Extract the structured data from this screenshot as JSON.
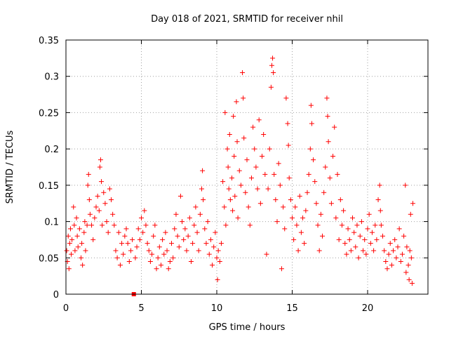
{
  "chart_data": {
    "type": "scatter",
    "title": "Day 018 of 2021, SRMTID for receiver nhil",
    "xlabel": "GPS time / hours",
    "ylabel": "SRMTID / TECUs",
    "xlim": [
      0,
      24
    ],
    "ylim": [
      0,
      0.35
    ],
    "xticks": [
      0,
      5,
      10,
      15,
      20
    ],
    "xtick_labels": [
      "0",
      "5",
      "10",
      "15",
      "20"
    ],
    "yticks": [
      0,
      0.05,
      0.1,
      0.15,
      0.2,
      0.25,
      0.3,
      0.35
    ],
    "ytick_labels": [
      "0",
      "0.05",
      "0.1",
      "0.15",
      "0.2",
      "0.25",
      "0.3",
      "0.35"
    ],
    "grid": true,
    "marker": "+",
    "marker_color": "#ff0000",
    "outlier_square": {
      "x": 4.5,
      "y": 0.0,
      "marker": "square"
    },
    "series": [
      {
        "name": "SRMTID",
        "points": [
          [
            0.05,
            0.06
          ],
          [
            0.1,
            0.045
          ],
          [
            0.15,
            0.08
          ],
          [
            0.2,
            0.035
          ],
          [
            0.25,
            0.07
          ],
          [
            0.3,
            0.09
          ],
          [
            0.35,
            0.055
          ],
          [
            0.4,
            0.075
          ],
          [
            0.5,
            0.12
          ],
          [
            0.55,
            0.095
          ],
          [
            0.6,
            0.06
          ],
          [
            0.7,
            0.105
          ],
          [
            0.75,
            0.08
          ],
          [
            0.8,
            0.065
          ],
          [
            0.9,
            0.09
          ],
          [
            1.0,
            0.05
          ],
          [
            1.05,
            0.07
          ],
          [
            1.1,
            0.04
          ],
          [
            1.2,
            0.085
          ],
          [
            1.25,
            0.1
          ],
          [
            1.3,
            0.06
          ],
          [
            1.4,
            0.095
          ],
          [
            1.45,
            0.15
          ],
          [
            1.5,
            0.165
          ],
          [
            1.55,
            0.13
          ],
          [
            1.6,
            0.11
          ],
          [
            1.7,
            0.095
          ],
          [
            1.8,
            0.075
          ],
          [
            1.9,
            0.105
          ],
          [
            2.0,
            0.12
          ],
          [
            2.1,
            0.135
          ],
          [
            2.2,
            0.115
          ],
          [
            2.25,
            0.175
          ],
          [
            2.3,
            0.185
          ],
          [
            2.35,
            0.155
          ],
          [
            2.4,
            0.095
          ],
          [
            2.5,
            0.14
          ],
          [
            2.6,
            0.125
          ],
          [
            2.7,
            0.1
          ],
          [
            2.8,
            0.085
          ],
          [
            2.9,
            0.145
          ],
          [
            3.0,
            0.13
          ],
          [
            3.1,
            0.11
          ],
          [
            3.2,
            0.095
          ],
          [
            3.3,
            0.06
          ],
          [
            3.4,
            0.05
          ],
          [
            3.5,
            0.085
          ],
          [
            3.6,
            0.04
          ],
          [
            3.7,
            0.07
          ],
          [
            3.8,
            0.055
          ],
          [
            3.9,
            0.08
          ],
          [
            4.0,
            0.09
          ],
          [
            4.1,
            0.07
          ],
          [
            4.2,
            0.045
          ],
          [
            4.3,
            0.06
          ],
          [
            4.4,
            0.075
          ],
          [
            4.6,
            0.05
          ],
          [
            4.7,
            0.065
          ],
          [
            4.8,
            0.09
          ],
          [
            4.9,
            0.075
          ],
          [
            5.0,
            0.105
          ],
          [
            5.1,
            0.085
          ],
          [
            5.2,
            0.115
          ],
          [
            5.3,
            0.095
          ],
          [
            5.4,
            0.07
          ],
          [
            5.5,
            0.06
          ],
          [
            5.6,
            0.045
          ],
          [
            5.7,
            0.055
          ],
          [
            5.8,
            0.08
          ],
          [
            5.9,
            0.095
          ],
          [
            6.0,
            0.035
          ],
          [
            6.1,
            0.05
          ],
          [
            6.2,
            0.065
          ],
          [
            6.3,
            0.04
          ],
          [
            6.4,
            0.075
          ],
          [
            6.5,
            0.055
          ],
          [
            6.6,
            0.085
          ],
          [
            6.7,
            0.06
          ],
          [
            6.8,
            0.035
          ],
          [
            6.9,
            0.045
          ],
          [
            7.0,
            0.07
          ],
          [
            7.1,
            0.05
          ],
          [
            7.2,
            0.09
          ],
          [
            7.3,
            0.11
          ],
          [
            7.4,
            0.08
          ],
          [
            7.5,
            0.065
          ],
          [
            7.6,
            0.135
          ],
          [
            7.7,
            0.1
          ],
          [
            7.8,
            0.075
          ],
          [
            7.9,
            0.09
          ],
          [
            8.0,
            0.06
          ],
          [
            8.1,
            0.08
          ],
          [
            8.2,
            0.105
          ],
          [
            8.3,
            0.045
          ],
          [
            8.4,
            0.07
          ],
          [
            8.5,
            0.095
          ],
          [
            8.6,
            0.12
          ],
          [
            8.7,
            0.085
          ],
          [
            8.8,
            0.06
          ],
          [
            8.9,
            0.11
          ],
          [
            9.0,
            0.145
          ],
          [
            9.05,
            0.17
          ],
          [
            9.1,
            0.13
          ],
          [
            9.2,
            0.09
          ],
          [
            9.3,
            0.07
          ],
          [
            9.4,
            0.1
          ],
          [
            9.5,
            0.055
          ],
          [
            9.6,
            0.075
          ],
          [
            9.7,
            0.04
          ],
          [
            9.8,
            0.065
          ],
          [
            9.9,
            0.085
          ],
          [
            10.0,
            0.05
          ],
          [
            10.05,
            0.02
          ],
          [
            10.1,
            0.06
          ],
          [
            10.2,
            0.045
          ],
          [
            10.3,
            0.07
          ],
          [
            10.4,
            0.155
          ],
          [
            10.5,
            0.12
          ],
          [
            10.55,
            0.25
          ],
          [
            10.6,
            0.095
          ],
          [
            10.7,
            0.2
          ],
          [
            10.75,
            0.175
          ],
          [
            10.8,
            0.145
          ],
          [
            10.85,
            0.22
          ],
          [
            10.9,
            0.13
          ],
          [
            11.0,
            0.16
          ],
          [
            11.05,
            0.115
          ],
          [
            11.1,
            0.245
          ],
          [
            11.15,
            0.19
          ],
          [
            11.2,
            0.135
          ],
          [
            11.3,
            0.265
          ],
          [
            11.35,
            0.21
          ],
          [
            11.4,
            0.105
          ],
          [
            11.5,
            0.17
          ],
          [
            11.6,
            0.15
          ],
          [
            11.7,
            0.305
          ],
          [
            11.75,
            0.27
          ],
          [
            11.8,
            0.215
          ],
          [
            11.9,
            0.14
          ],
          [
            12.0,
            0.185
          ],
          [
            12.1,
            0.12
          ],
          [
            12.2,
            0.095
          ],
          [
            12.3,
            0.16
          ],
          [
            12.4,
            0.23
          ],
          [
            12.5,
            0.2
          ],
          [
            12.6,
            0.175
          ],
          [
            12.7,
            0.145
          ],
          [
            12.8,
            0.24
          ],
          [
            12.9,
            0.125
          ],
          [
            13.0,
            0.19
          ],
          [
            13.1,
            0.22
          ],
          [
            13.2,
            0.165
          ],
          [
            13.3,
            0.055
          ],
          [
            13.4,
            0.145
          ],
          [
            13.5,
            0.2
          ],
          [
            13.6,
            0.285
          ],
          [
            13.65,
            0.315
          ],
          [
            13.7,
            0.325
          ],
          [
            13.75,
            0.305
          ],
          [
            13.8,
            0.165
          ],
          [
            13.9,
            0.13
          ],
          [
            14.0,
            0.1
          ],
          [
            14.1,
            0.18
          ],
          [
            14.2,
            0.15
          ],
          [
            14.3,
            0.035
          ],
          [
            14.4,
            0.12
          ],
          [
            14.5,
            0.09
          ],
          [
            14.6,
            0.27
          ],
          [
            14.7,
            0.235
          ],
          [
            14.75,
            0.205
          ],
          [
            14.8,
            0.16
          ],
          [
            14.9,
            0.13
          ],
          [
            15.0,
            0.105
          ],
          [
            15.1,
            0.075
          ],
          [
            15.2,
            0.12
          ],
          [
            15.3,
            0.095
          ],
          [
            15.4,
            0.06
          ],
          [
            15.5,
            0.135
          ],
          [
            15.6,
            0.085
          ],
          [
            15.7,
            0.105
          ],
          [
            15.8,
            0.07
          ],
          [
            15.9,
            0.115
          ],
          [
            16.0,
            0.14
          ],
          [
            16.1,
            0.165
          ],
          [
            16.2,
            0.2
          ],
          [
            16.25,
            0.26
          ],
          [
            16.3,
            0.235
          ],
          [
            16.4,
            0.185
          ],
          [
            16.5,
            0.155
          ],
          [
            16.6,
            0.125
          ],
          [
            16.7,
            0.095
          ],
          [
            16.8,
            0.06
          ],
          [
            16.9,
            0.11
          ],
          [
            17.0,
            0.08
          ],
          [
            17.1,
            0.14
          ],
          [
            17.2,
            0.175
          ],
          [
            17.3,
            0.27
          ],
          [
            17.35,
            0.245
          ],
          [
            17.4,
            0.21
          ],
          [
            17.5,
            0.16
          ],
          [
            17.6,
            0.125
          ],
          [
            17.7,
            0.19
          ],
          [
            17.8,
            0.23
          ],
          [
            17.9,
            0.105
          ],
          [
            18.0,
            0.165
          ],
          [
            18.1,
            0.075
          ],
          [
            18.2,
            0.13
          ],
          [
            18.3,
            0.095
          ],
          [
            18.4,
            0.115
          ],
          [
            18.5,
            0.07
          ],
          [
            18.6,
            0.055
          ],
          [
            18.7,
            0.09
          ],
          [
            18.8,
            0.075
          ],
          [
            18.9,
            0.06
          ],
          [
            19.0,
            0.105
          ],
          [
            19.1,
            0.085
          ],
          [
            19.2,
            0.065
          ],
          [
            19.3,
            0.095
          ],
          [
            19.4,
            0.05
          ],
          [
            19.5,
            0.08
          ],
          [
            19.6,
            0.1
          ],
          [
            19.7,
            0.06
          ],
          [
            19.8,
            0.075
          ],
          [
            19.9,
            0.055
          ],
          [
            20.0,
            0.09
          ],
          [
            20.1,
            0.11
          ],
          [
            20.2,
            0.07
          ],
          [
            20.3,
            0.085
          ],
          [
            20.4,
            0.06
          ],
          [
            20.5,
            0.095
          ],
          [
            20.6,
            0.075
          ],
          [
            20.7,
            0.13
          ],
          [
            20.8,
            0.15
          ],
          [
            20.85,
            0.115
          ],
          [
            20.9,
            0.095
          ],
          [
            21.0,
            0.08
          ],
          [
            21.1,
            0.06
          ],
          [
            21.2,
            0.045
          ],
          [
            21.3,
            0.035
          ],
          [
            21.4,
            0.055
          ],
          [
            21.5,
            0.07
          ],
          [
            21.6,
            0.04
          ],
          [
            21.7,
            0.06
          ],
          [
            21.8,
            0.075
          ],
          [
            21.9,
            0.05
          ],
          [
            22.0,
            0.065
          ],
          [
            22.1,
            0.09
          ],
          [
            22.2,
            0.045
          ],
          [
            22.3,
            0.055
          ],
          [
            22.4,
            0.08
          ],
          [
            22.5,
            0.15
          ],
          [
            22.6,
            0.065
          ],
          [
            22.7,
            0.04
          ],
          [
            22.75,
            0.02
          ],
          [
            22.8,
            0.06
          ],
          [
            22.85,
            0.11
          ],
          [
            22.9,
            0.05
          ],
          [
            23.0,
            0.125
          ],
          [
            22.95,
            0.015
          ],
          [
            22.55,
            0.03
          ]
        ]
      }
    ]
  }
}
